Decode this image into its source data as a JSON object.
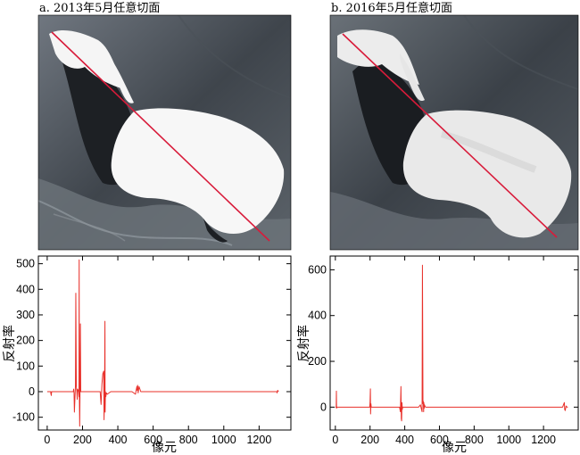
{
  "panels": [
    {
      "title": "a. 2013年5月任意切面"
    },
    {
      "title": "b. 2016年5月任意切面"
    }
  ],
  "colors": {
    "profile_line": "#d81b3a",
    "signal": "#e8302a",
    "ice": "#f5f5f5",
    "water_dark": "#1c1f23",
    "land": "#5a6066"
  },
  "chart_data": [
    {
      "type": "line",
      "title": "",
      "xlabel": "像元",
      "ylabel": "反射率",
      "xlim": [
        -50,
        1380
      ],
      "ylim": [
        -150,
        530
      ],
      "xticks": [
        0,
        200,
        400,
        600,
        800,
        1000,
        1200
      ],
      "yticks": [
        -100,
        0,
        100,
        200,
        300,
        400,
        500
      ],
      "grid": false,
      "series": [
        {
          "x": [
            0,
            20,
            21,
            22,
            23,
            24,
            25,
            40,
            100,
            140,
            148,
            150,
            152,
            154,
            160,
            162,
            165,
            168,
            170,
            172,
            178,
            180,
            181,
            182,
            184,
            186,
            188,
            190,
            192,
            194,
            196,
            198,
            200,
            205,
            230,
            290,
            300,
            302,
            305,
            310,
            315,
            320,
            322,
            325,
            327,
            328,
            330,
            332,
            335,
            340,
            360,
            420,
            480,
            500,
            505,
            508,
            510,
            512,
            515,
            520,
            525,
            530,
            600,
            800,
            1000,
            1200,
            1300,
            1302,
            1305,
            1310
          ],
          "y": [
            0,
            0,
            -10,
            -5,
            -15,
            -8,
            0,
            0,
            0,
            0,
            0,
            10,
            -5,
            -80,
            25,
            385,
            20,
            0,
            -30,
            10,
            0,
            -20,
            515,
            0,
            -135,
            10,
            265,
            0,
            0,
            0,
            0,
            0,
            0,
            0,
            0,
            0,
            0,
            -20,
            -50,
            30,
            70,
            80,
            -110,
            10,
            275,
            -80,
            0,
            -20,
            -5,
            -10,
            0,
            0,
            0,
            -10,
            10,
            20,
            5,
            25,
            -5,
            20,
            10,
            0,
            0,
            0,
            0,
            0,
            0,
            -5,
            5,
            0
          ]
        }
      ]
    },
    {
      "type": "line",
      "title": "",
      "xlabel": "像元",
      "ylabel": "反射率",
      "xlim": [
        -30,
        1400
      ],
      "ylim": [
        -100,
        660
      ],
      "xticks": [
        0,
        200,
        400,
        600,
        800,
        1000,
        1200
      ],
      "yticks": [
        0,
        200,
        400,
        600
      ],
      "grid": false,
      "series": [
        {
          "x": [
            0,
            5,
            6,
            7,
            8,
            10,
            30,
            100,
            150,
            198,
            200,
            202,
            203,
            205,
            207,
            210,
            300,
            370,
            375,
            378,
            380,
            382,
            384,
            386,
            388,
            390,
            400,
            470,
            480,
            490,
            500,
            502,
            504,
            505,
            507,
            509,
            510,
            512,
            514,
            516,
            520,
            540,
            600,
            800,
            1000,
            1200,
            1310,
            1320,
            1322,
            1325,
            1330,
            1335,
            1340
          ],
          "y": [
            0,
            0,
            70,
            -5,
            0,
            0,
            0,
            0,
            0,
            0,
            20,
            80,
            -30,
            15,
            0,
            0,
            0,
            0,
            -20,
            90,
            -50,
            -60,
            20,
            -10,
            0,
            0,
            0,
            0,
            0,
            10,
            -20,
            620,
            240,
            15,
            25,
            -20,
            20,
            -5,
            10,
            5,
            0,
            0,
            0,
            0,
            0,
            0,
            0,
            20,
            -10,
            -15,
            5,
            0,
            0
          ]
        }
      ]
    }
  ]
}
